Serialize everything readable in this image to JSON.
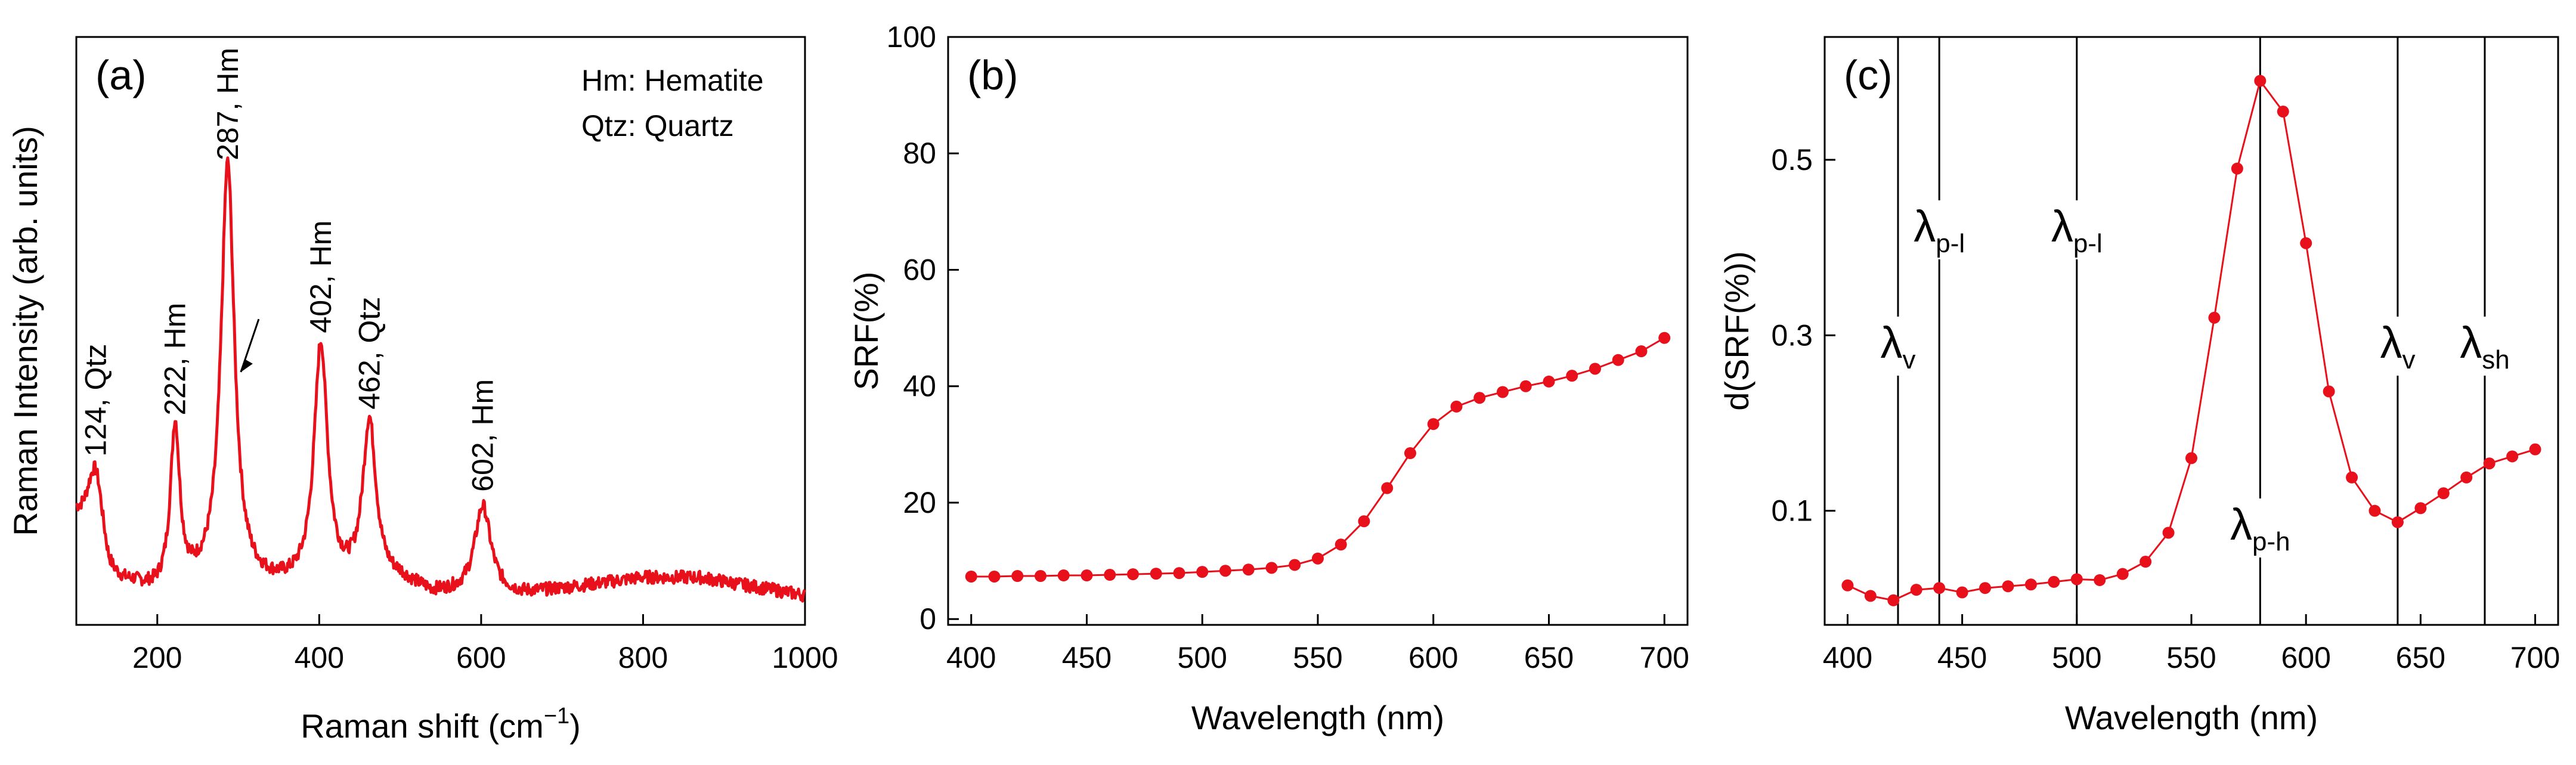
{
  "chart_data": [
    {
      "panel": "(a)",
      "type": "line",
      "xlabel": "Raman shift (cm⁻¹)",
      "ylabel": "Raman Intensity (arb. units)",
      "xlim": [
        100,
        1000
      ],
      "ylim": [
        0,
        1
      ],
      "xticks": [
        200,
        400,
        600,
        800,
        1000
      ],
      "color": "#e8101a",
      "legend_text": [
        "Hm: Hematite",
        "Qtz: Quartz"
      ],
      "peaks": [
        {
          "x": 124,
          "y": 0.26,
          "label": "124, Qtz"
        },
        {
          "x": 222,
          "y": 0.33,
          "label": "222, Hm"
        },
        {
          "x": 287,
          "y": 0.78,
          "label": "287, Hm"
        },
        {
          "x": 402,
          "y": 0.47,
          "label": "402, Hm"
        },
        {
          "x": 462,
          "y": 0.34,
          "label": "462, Qtz"
        },
        {
          "x": 602,
          "y": 0.2,
          "label": "602, Hm"
        }
      ],
      "baseline": [
        [
          100,
          0.17
        ],
        [
          115,
          0.14
        ],
        [
          140,
          0.06
        ],
        [
          170,
          0.06
        ],
        [
          200,
          0.05
        ],
        [
          250,
          0.06
        ],
        [
          350,
          0.06
        ],
        [
          440,
          0.06
        ],
        [
          500,
          0.07
        ],
        [
          540,
          0.05
        ],
        [
          650,
          0.05
        ],
        [
          700,
          0.06
        ],
        [
          800,
          0.08
        ],
        [
          870,
          0.08
        ],
        [
          1000,
          0.05
        ]
      ]
    },
    {
      "panel": "(b)",
      "type": "line",
      "xlabel": "Wavelength (nm)",
      "ylabel": "SRF(%)",
      "xlim": [
        390,
        710
      ],
      "ylim": [
        -1,
        100
      ],
      "xticks": [
        400,
        450,
        500,
        550,
        600,
        650,
        700
      ],
      "yticks": [
        0,
        20,
        40,
        60,
        80,
        100
      ],
      "color": "#e8101a",
      "x": [
        400,
        410,
        420,
        430,
        440,
        450,
        460,
        470,
        480,
        490,
        500,
        510,
        520,
        530,
        540,
        550,
        560,
        570,
        580,
        590,
        600,
        610,
        620,
        630,
        640,
        650,
        660,
        670,
        680,
        690,
        700
      ],
      "y": [
        7.3,
        7.3,
        7.4,
        7.4,
        7.5,
        7.5,
        7.6,
        7.7,
        7.8,
        7.9,
        8.1,
        8.3,
        8.5,
        8.8,
        9.3,
        10.4,
        12.8,
        16.8,
        22.5,
        28.5,
        33.5,
        36.5,
        38,
        39,
        40,
        40.8,
        41.8,
        43,
        44.5,
        46,
        48.3
      ]
    },
    {
      "panel": "(c)",
      "type": "line",
      "xlabel": "Wavelength (nm)",
      "ylabel": "d(SRF(%))",
      "xlim": [
        390,
        710
      ],
      "ylim": [
        -0.03,
        0.64
      ],
      "xticks": [
        400,
        450,
        500,
        550,
        600,
        650,
        700
      ],
      "yticks": [
        0.1,
        0.3,
        0.5
      ],
      "color": "#e8101a",
      "x": [
        400,
        410,
        420,
        430,
        440,
        450,
        460,
        470,
        480,
        490,
        500,
        510,
        520,
        530,
        540,
        550,
        560,
        570,
        580,
        590,
        600,
        610,
        620,
        630,
        640,
        650,
        660,
        670,
        680,
        690,
        700
      ],
      "y": [
        0.015,
        0.003,
        -0.002,
        0.01,
        0.012,
        0.007,
        0.012,
        0.014,
        0.016,
        0.019,
        0.022,
        0.021,
        0.028,
        0.042,
        0.075,
        0.16,
        0.32,
        0.49,
        0.59,
        0.555,
        0.405,
        0.236,
        0.138,
        0.1,
        0.087,
        0.103,
        0.12,
        0.138,
        0.154,
        0.162,
        0.17
      ],
      "markers": [
        {
          "x": 422,
          "label": "λ",
          "sub": "v",
          "pos": "upper"
        },
        {
          "x": 440,
          "label": "λ",
          "sub": "p-l",
          "pos": "top"
        },
        {
          "x": 500,
          "label": "λ",
          "sub": "p-l",
          "pos": "top"
        },
        {
          "x": 580,
          "label": "λ",
          "sub": "p-h",
          "pos": "lower"
        },
        {
          "x": 640,
          "label": "λ",
          "sub": "v",
          "pos": "upper"
        },
        {
          "x": 678,
          "label": "λ",
          "sub": "sh",
          "pos": "upper"
        }
      ]
    }
  ]
}
